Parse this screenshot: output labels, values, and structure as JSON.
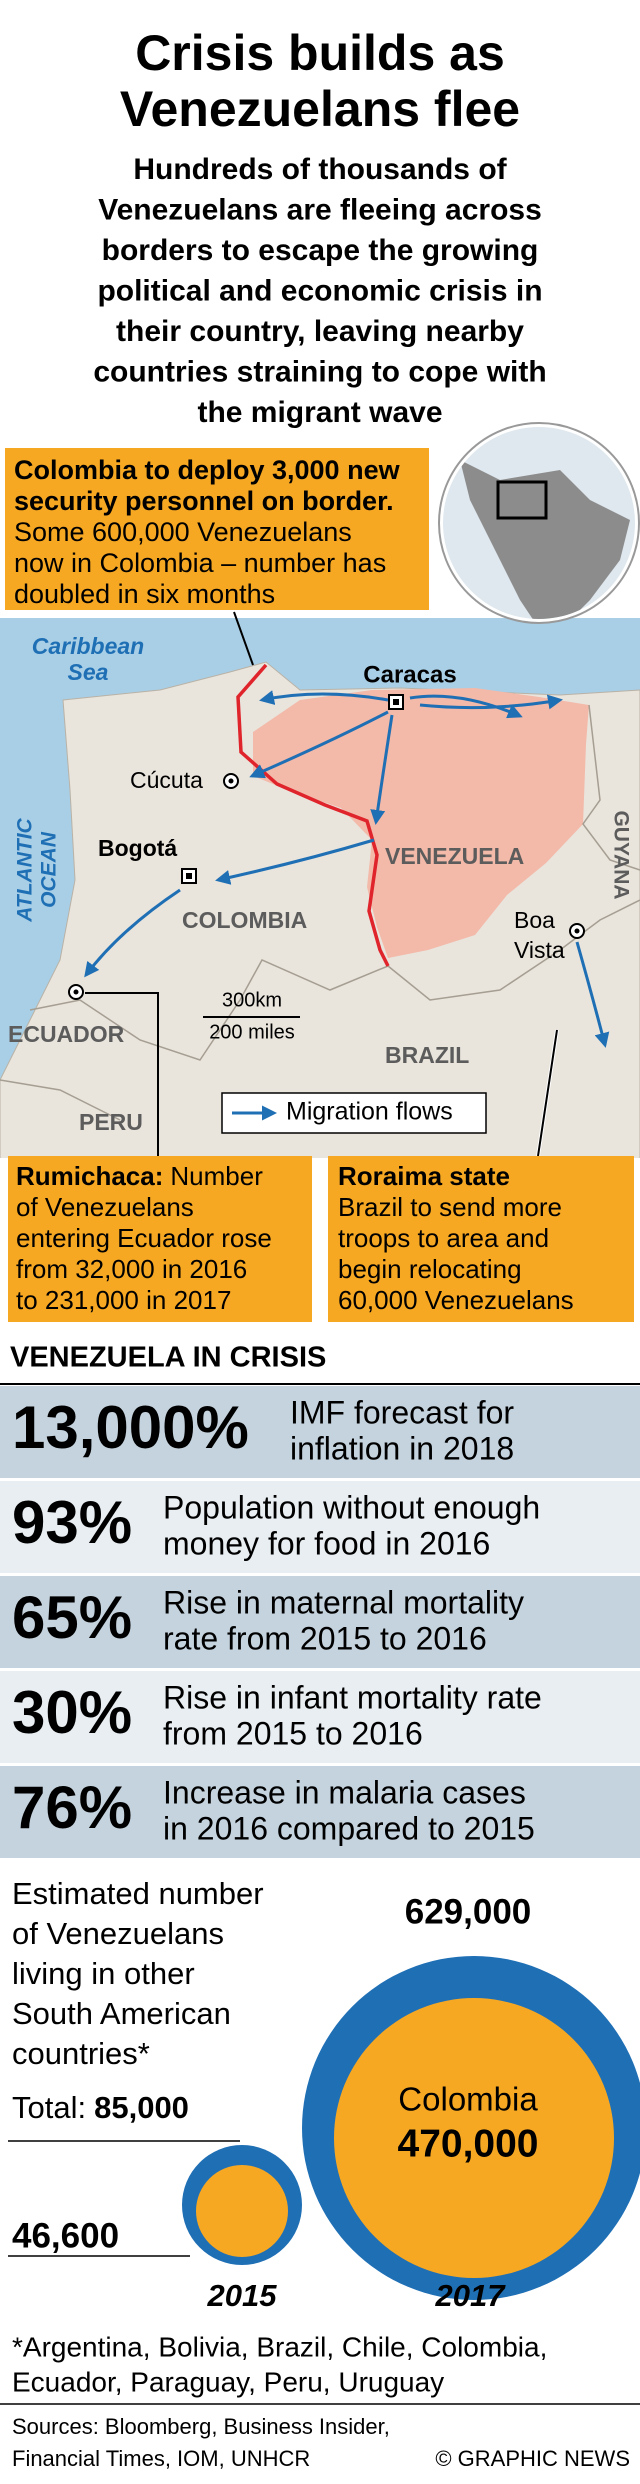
{
  "header": {
    "title": [
      "Crisis builds as",
      "Venezuelans flee"
    ],
    "subtitle": [
      "Hundreds of thousands of",
      "Venezuelans are fleeing across",
      "borders to escape the growing",
      "political and economic crisis in",
      "their country, leaving nearby",
      "countries straining to cope with",
      "the migrant wave"
    ]
  },
  "map": {
    "callouts": {
      "colombia": {
        "bold": [
          "Colombia to deploy 3,000 new",
          "security personnel on border."
        ],
        "lines": [
          "Some 600,000 Venezuelans",
          "now in Colombia – number has",
          "doubled in six months"
        ]
      },
      "rumichaca": {
        "bold": "Rumichaca:",
        "lines": [
          "Number",
          "of Venezuelans",
          "entering Ecuador rose",
          "from 32,000 in 2016",
          "to 231,000 in 2017"
        ]
      },
      "roraima": {
        "bold": "Roraima state",
        "lines": [
          "Brazil to send more",
          "troops to area and",
          "begin relocating",
          "60,000 Venezuelans"
        ]
      }
    },
    "seas": {
      "caribbean": [
        "Caribbean",
        "Sea"
      ],
      "atlantic": [
        "ATLANTIC",
        "OCEAN"
      ]
    },
    "cities": {
      "caracas": "Caracas",
      "cucuta": "Cúcuta",
      "bogota": "Bogotá",
      "boa_vista": [
        "Boa",
        "Vista"
      ]
    },
    "countries": {
      "venezuela": "VENEZUELA",
      "colombia": "COLOMBIA",
      "ecuador": "ECUADOR",
      "peru": "PERU",
      "brazil": "BRAZIL",
      "guyana": "GUYANA"
    },
    "scale": [
      "300km",
      "200 miles"
    ],
    "legend": "Migration flows"
  },
  "stats": {
    "title": "VENEZUELA IN CRISIS",
    "rows": [
      {
        "value": "13,000%",
        "lines": [
          "IMF forecast for",
          "inflation in 2018"
        ]
      },
      {
        "value": "93%",
        "lines": [
          "Population without enough",
          "money for food in 2016"
        ]
      },
      {
        "value": "65%",
        "lines": [
          "Rise in maternal mortality",
          "rate from 2015 to 2016"
        ]
      },
      {
        "value": "30%",
        "lines": [
          "Rise in infant mortality rate",
          "from 2015 to 2016"
        ]
      },
      {
        "value": "76%",
        "lines": [
          "Increase in malaria cases",
          "in 2016 compared to 2015"
        ]
      }
    ]
  },
  "bubbles": {
    "intro": [
      "Estimated number",
      "of Venezuelans",
      "living in other",
      "South American",
      "countries*"
    ],
    "total_label": "Total:",
    "y2015": {
      "total": "85,000",
      "colombia": "46,600",
      "year": "2015"
    },
    "y2017": {
      "total": "629,000",
      "country": "Colombia",
      "colombia": "470,000",
      "year": "2017"
    }
  },
  "footnote": [
    "*Argentina, Bolivia, Brazil, Chile, Colombia,",
    "Ecuador, Paraguay, Peru, Uruguay"
  ],
  "sources": [
    "Sources: Bloomberg, Business Insider,",
    "Financial Times, IOM, UNHCR"
  ],
  "credit": "© GRAPHIC NEWS"
}
